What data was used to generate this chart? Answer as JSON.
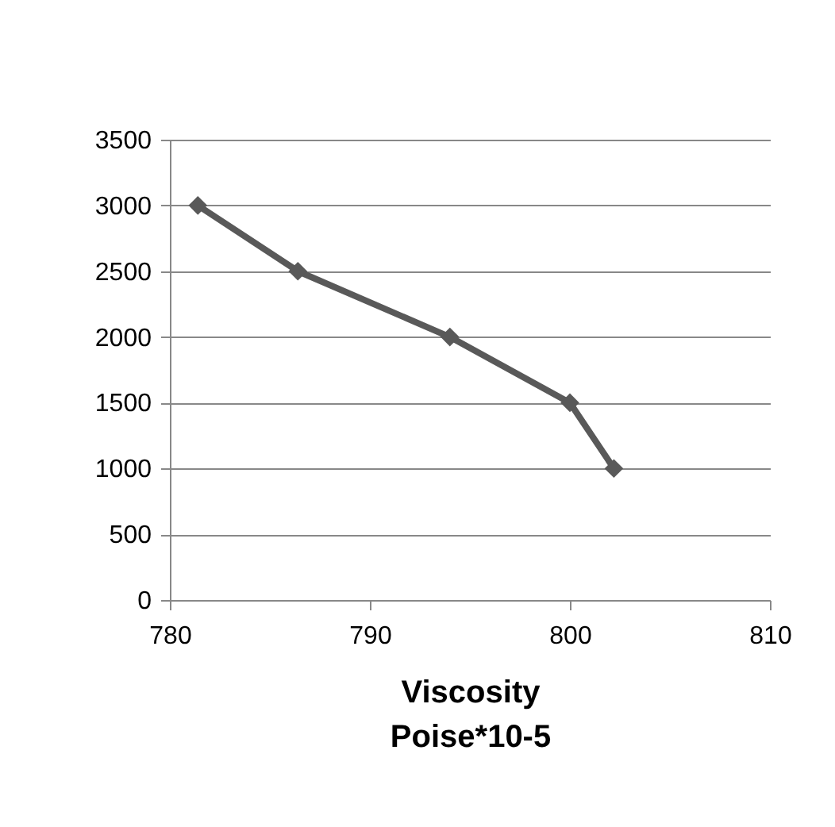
{
  "chart_data": {
    "type": "line",
    "xlabel": "Viscosity\nPoise*10-5",
    "x": [
      781.4,
      786.4,
      794.0,
      800.0,
      802.2
    ],
    "series": [
      {
        "color": "#595959",
        "values": [
          3000,
          2500,
          2000,
          1500,
          1000
        ]
      }
    ],
    "xlim": [
      780,
      810
    ],
    "xticks": [
      780,
      790,
      800,
      810
    ],
    "ylim": [
      0,
      3500
    ],
    "yticks": [
      0,
      500,
      1000,
      1500,
      2000,
      2500,
      3000,
      3500
    ],
    "grid": "y",
    "marker": "diamond",
    "line_style": "solid"
  }
}
